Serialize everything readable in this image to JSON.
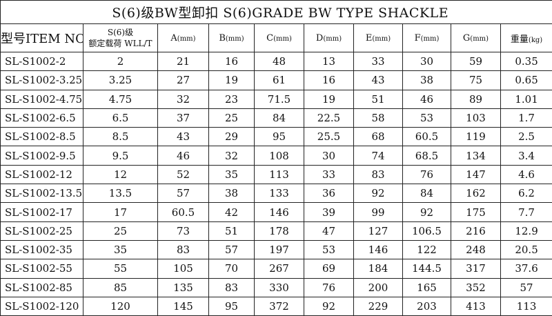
{
  "title": "S(6)级BW型卸扣  S(6)GRADE BW TYPE SHACKLE",
  "headers": {
    "item": "型号ITEM NO.",
    "wll_line1": "S(6)级",
    "wll_line2": "额定载荷 WLL/T",
    "cols": [
      {
        "label": "A",
        "unit": "(mm)"
      },
      {
        "label": "B",
        "unit": "(mm)"
      },
      {
        "label": "C",
        "unit": "(mm)"
      },
      {
        "label": "D",
        "unit": "(mm)"
      },
      {
        "label": "E",
        "unit": "(mm)"
      },
      {
        "label": "F",
        "unit": "(mm)"
      },
      {
        "label": "G",
        "unit": "(mm)"
      },
      {
        "label": "重量",
        "unit": "(kg)"
      }
    ]
  },
  "rows": [
    [
      "SL-S1002-2",
      "2",
      "21",
      "16",
      "48",
      "13",
      "33",
      "30",
      "59",
      "0.35"
    ],
    [
      "SL-S1002-3.25",
      "3.25",
      "27",
      "19",
      "61",
      "16",
      "43",
      "38",
      "75",
      "0.65"
    ],
    [
      "SL-S1002-4.75",
      "4.75",
      "32",
      "23",
      "71.5",
      "19",
      "51",
      "46",
      "89",
      "1.01"
    ],
    [
      "SL-S1002-6.5",
      "6.5",
      "37",
      "25",
      "84",
      "22.5",
      "58",
      "53",
      "103",
      "1.7"
    ],
    [
      "SL-S1002-8.5",
      "8.5",
      "43",
      "29",
      "95",
      "25.5",
      "68",
      "60.5",
      "119",
      "2.5"
    ],
    [
      "SL-S1002-9.5",
      "9.5",
      "46",
      "32",
      "108",
      "30",
      "74",
      "68.5",
      "134",
      "3.4"
    ],
    [
      "SL-S1002-12",
      "12",
      "52",
      "35",
      "113",
      "33",
      "83",
      "76",
      "147",
      "4.6"
    ],
    [
      "SL-S1002-13.5",
      "13.5",
      "57",
      "38",
      "133",
      "36",
      "92",
      "84",
      "162",
      "6.2"
    ],
    [
      "SL-S1002-17",
      "17",
      "60.5",
      "42",
      "146",
      "39",
      "99",
      "92",
      "175",
      "7.7"
    ],
    [
      "SL-S1002-25",
      "25",
      "73",
      "51",
      "178",
      "47",
      "127",
      "106.5",
      "216",
      "12.9"
    ],
    [
      "SL-S1002-35",
      "35",
      "83",
      "57",
      "197",
      "53",
      "146",
      "122",
      "248",
      "20.5"
    ],
    [
      "SL-S1002-55",
      "55",
      "105",
      "70",
      "267",
      "69",
      "184",
      "144.5",
      "317",
      "37.6"
    ],
    [
      "SL-S1002-85",
      "85",
      "135",
      "83",
      "330",
      "76",
      "200",
      "165",
      "352",
      "57"
    ],
    [
      "SL-S1002-120",
      "120",
      "145",
      "95",
      "372",
      "92",
      "229",
      "203",
      "413",
      "113"
    ]
  ]
}
